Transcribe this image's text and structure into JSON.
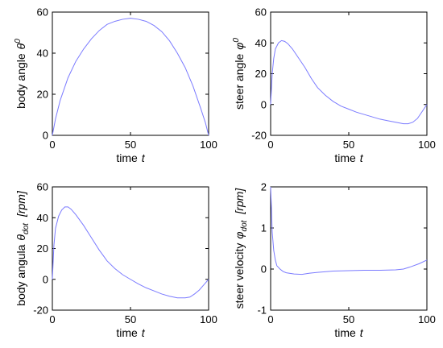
{
  "chart_data": [
    {
      "type": "line",
      "xlabel": "time",
      "xlabel_var": "t",
      "ylabel": "body angle",
      "ylabel_var": "θ",
      "ylabel_sup": "0",
      "ylabel_sub": "",
      "ylabel_unit": "",
      "xlim": [
        0,
        100
      ],
      "ylim": [
        0,
        60
      ],
      "xticks": [
        0,
        50,
        100
      ],
      "yticks": [
        0,
        20,
        40,
        60
      ],
      "grid": false,
      "line_color": "#7b7bff",
      "series": [
        {
          "x": [
            0,
            2,
            5,
            10,
            15,
            20,
            25,
            30,
            35,
            40,
            45,
            50,
            55,
            60,
            65,
            70,
            75,
            80,
            85,
            90,
            95,
            98,
            100
          ],
          "y": [
            0,
            8,
            17,
            28,
            36,
            42,
            47,
            51,
            54,
            55.5,
            56.5,
            57,
            56.5,
            55.5,
            53.5,
            50.5,
            46,
            40,
            33,
            24,
            13,
            6,
            0
          ]
        }
      ]
    },
    {
      "type": "line",
      "xlabel": "time",
      "xlabel_var": "t",
      "ylabel": "steer angle",
      "ylabel_var": "φ",
      "ylabel_sup": "0",
      "ylabel_sub": "",
      "ylabel_unit": "",
      "xlim": [
        0,
        100
      ],
      "ylim": [
        -20,
        60
      ],
      "xticks": [
        0,
        50,
        100
      ],
      "yticks": [
        -20,
        0,
        20,
        40,
        60
      ],
      "grid": false,
      "line_color": "#7b7bff",
      "series": [
        {
          "x": [
            0,
            1,
            2,
            3,
            5,
            7,
            9,
            11,
            14,
            18,
            22,
            26,
            30,
            35,
            40,
            45,
            50,
            55,
            60,
            65,
            70,
            75,
            80,
            85,
            88,
            91,
            94,
            96,
            98,
            100
          ],
          "y": [
            0,
            20,
            30,
            36,
            40,
            41.5,
            41,
            39.5,
            36,
            30,
            24,
            17,
            11,
            6,
            2,
            -1,
            -3,
            -5,
            -6.5,
            -8,
            -9.5,
            -10.5,
            -11.5,
            -12.5,
            -12.5,
            -11.5,
            -9,
            -6,
            -3,
            0
          ]
        }
      ]
    },
    {
      "type": "line",
      "xlabel": "time",
      "xlabel_var": "t",
      "ylabel": "body angula",
      "ylabel_var": "θ",
      "ylabel_sup": "",
      "ylabel_sub": "dot",
      "ylabel_unit": "[rpm]",
      "xlim": [
        0,
        100
      ],
      "ylim": [
        -20,
        60
      ],
      "xticks": [
        0,
        50,
        100
      ],
      "yticks": [
        -20,
        0,
        20,
        40,
        60
      ],
      "grid": false,
      "line_color": "#7b7bff",
      "series": [
        {
          "x": [
            0,
            1,
            2,
            4,
            6,
            8,
            10,
            12,
            15,
            20,
            25,
            30,
            35,
            40,
            45,
            50,
            55,
            60,
            65,
            70,
            75,
            80,
            85,
            88,
            91,
            94,
            97,
            100
          ],
          "y": [
            0,
            22,
            33,
            41,
            45,
            47,
            47,
            45.5,
            42,
            35,
            27,
            19,
            12,
            7,
            3,
            0,
            -3,
            -5.5,
            -7.5,
            -9.5,
            -11,
            -12,
            -12,
            -11.5,
            -9.5,
            -7,
            -3.5,
            0
          ]
        }
      ]
    },
    {
      "type": "line",
      "xlabel": "time",
      "xlabel_var": "t",
      "ylabel": "steer velocity",
      "ylabel_var": "φ",
      "ylabel_sup": "",
      "ylabel_sub": "dot",
      "ylabel_unit": "[rpm]",
      "xlim": [
        0,
        100
      ],
      "ylim": [
        -1,
        2
      ],
      "xticks": [
        0,
        50,
        100
      ],
      "yticks": [
        -1,
        0,
        1,
        2
      ],
      "grid": false,
      "line_color": "#7b7bff",
      "series": [
        {
          "x": [
            0,
            0.5,
            1,
            2,
            3,
            4,
            6,
            8,
            10,
            15,
            20,
            25,
            30,
            40,
            50,
            60,
            70,
            80,
            85,
            90,
            95,
            100
          ],
          "y": [
            2,
            1.5,
            0.9,
            0.45,
            0.22,
            0.08,
            0.0,
            -0.06,
            -0.09,
            -0.12,
            -0.13,
            -0.1,
            -0.08,
            -0.05,
            -0.04,
            -0.03,
            -0.03,
            -0.02,
            0.0,
            0.06,
            0.13,
            0.22
          ]
        }
      ]
    }
  ]
}
